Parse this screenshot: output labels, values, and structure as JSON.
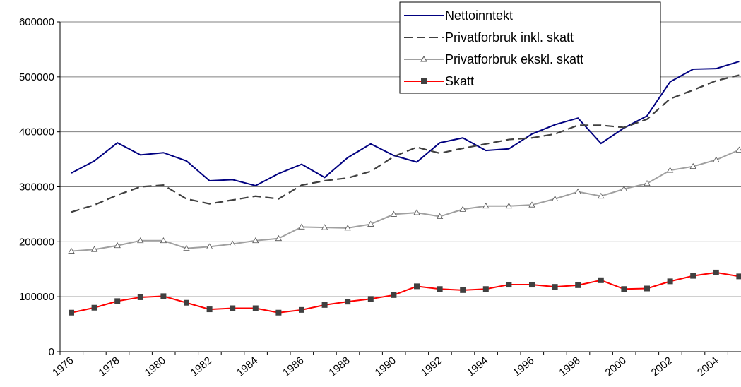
{
  "chart_data": {
    "type": "line",
    "categories": [
      "1976",
      null,
      "1978",
      null,
      "1980",
      null,
      "1982",
      null,
      "1984",
      null,
      "1986",
      null,
      "1988",
      null,
      "1990",
      null,
      "1992",
      null,
      "1994",
      null,
      "1996",
      null,
      "1998",
      null,
      "2000",
      null,
      "2002",
      null,
      "2004",
      null
    ],
    "series": [
      {
        "name": "Nettoinntekt",
        "color": "#000080",
        "values": [
          325000,
          347000,
          380000,
          358000,
          362000,
          347000,
          311000,
          313000,
          302000,
          324000,
          341000,
          317000,
          353000,
          378000,
          357000,
          345000,
          380000,
          389000,
          366000,
          369000,
          396000,
          413000,
          425000,
          379000,
          407000,
          429000,
          491000,
          514000,
          515000,
          528000
        ]
      },
      {
        "name": "Privatforbruk inkl. skatt",
        "color": "#404040",
        "dash": true,
        "values": [
          254000,
          267000,
          285000,
          300000,
          303000,
          278000,
          269000,
          276000,
          283000,
          278000,
          303000,
          311000,
          316000,
          328000,
          355000,
          372000,
          361000,
          370000,
          378000,
          386000,
          389000,
          396000,
          412000,
          412000,
          408000,
          423000,
          460000,
          476000,
          493000,
          503000
        ]
      },
      {
        "name": "Privatforbruk ekskl. skatt",
        "color": "#a0a0a0",
        "marker": "triangle",
        "values": [
          183000,
          186000,
          193000,
          202000,
          202000,
          188000,
          191000,
          196000,
          202000,
          206000,
          227000,
          226000,
          225000,
          232000,
          250000,
          253000,
          246000,
          259000,
          265000,
          265000,
          267000,
          278000,
          291000,
          283000,
          296000,
          306000,
          330000,
          337000,
          349000,
          367000
        ]
      },
      {
        "name": "Skatt",
        "color": "#ff0000",
        "marker": "square",
        "marker_color": "#404040",
        "values": [
          71000,
          80000,
          92000,
          99000,
          101000,
          89000,
          77000,
          79000,
          79000,
          71000,
          76000,
          85000,
          91000,
          96000,
          103000,
          119000,
          114000,
          112000,
          114000,
          122000,
          122000,
          118000,
          121000,
          130000,
          114000,
          115000,
          128000,
          138000,
          144000,
          137000
        ]
      }
    ],
    "ylim": [
      0,
      600000
    ],
    "yticks": [
      0,
      100000,
      200000,
      300000,
      400000,
      500000,
      600000
    ],
    "grid": true,
    "legend": "top-right"
  }
}
